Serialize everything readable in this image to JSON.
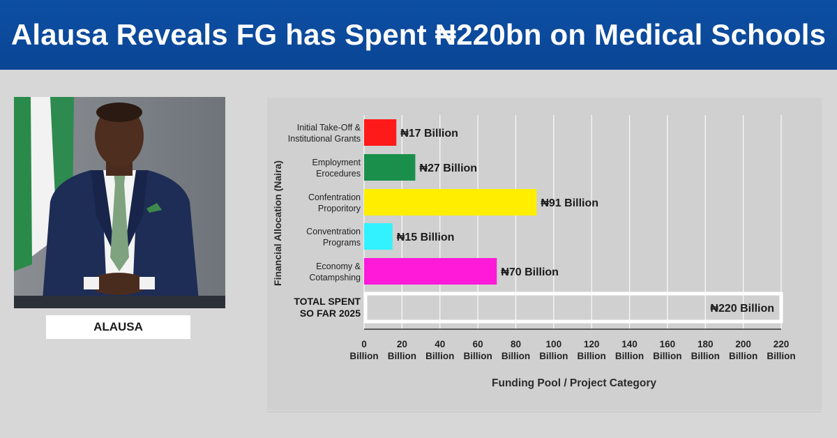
{
  "header": {
    "title": "Alausa Reveals FG has Spent ₦220bn on Medical Schools"
  },
  "portrait": {
    "caption": "ALAUSA"
  },
  "colors": {
    "banner": "#0b4aa0",
    "background": "#d6d7d6",
    "bar_red": "#ff1a1a",
    "bar_green": "#1a8f4c",
    "bar_yellow": "#ffee00",
    "bar_cyan": "#33f2ff",
    "bar_magenta": "#ff1ad9",
    "total_outline": "#ffffff"
  },
  "chart_data": {
    "type": "bar",
    "orientation": "horizontal",
    "ylabel": "Financial Allocation (Naira)",
    "xlabel": "Funding Pool / Project Category",
    "xlim": [
      0,
      220
    ],
    "grid": true,
    "categories": [
      [
        "Initial Take-Off &",
        "Institutional Grants"
      ],
      [
        "Employment",
        "Erocedures"
      ],
      [
        "Confentration",
        "Proporitory"
      ],
      [
        "Conventration",
        "Programs"
      ],
      [
        "Economy &",
        "Cotampshing"
      ]
    ],
    "values": [
      17,
      27,
      91,
      15,
      70
    ],
    "value_labels": [
      "₦17 Billion",
      "₦27 Billion",
      "₦91 Billion",
      "₦15 Billion",
      "₦70 Billion"
    ],
    "bar_colors": [
      "#ff1a1a",
      "#1a8f4c",
      "#ffee00",
      "#33f2ff",
      "#ff1ad9"
    ],
    "total": {
      "label": [
        "TOTAL SPENT",
        "SO FAR  2025"
      ],
      "value": 220,
      "value_label": "₦220 Billion"
    },
    "x_ticks": [
      {
        "value": 0,
        "label": [
          "0",
          "Billion"
        ]
      },
      {
        "value": 20,
        "label": [
          "20",
          "Billion"
        ]
      },
      {
        "value": 40,
        "label": [
          "40",
          "Billion"
        ]
      },
      {
        "value": 60,
        "label": [
          "60",
          "Billion"
        ]
      },
      {
        "value": 80,
        "label": [
          "80",
          "Billion"
        ]
      },
      {
        "value": 100,
        "label": [
          "100",
          "Billion"
        ]
      },
      {
        "value": 120,
        "label": [
          "120",
          "Billion"
        ]
      },
      {
        "value": 140,
        "label": [
          "140",
          "Billion"
        ]
      },
      {
        "value": 160,
        "label": [
          "160",
          "Billion"
        ]
      },
      {
        "value": 180,
        "label": [
          "180",
          "Billion"
        ]
      },
      {
        "value": 200,
        "label": [
          "200",
          "Billion"
        ]
      },
      {
        "value": 220,
        "label": [
          "220",
          "Billion"
        ]
      }
    ]
  }
}
